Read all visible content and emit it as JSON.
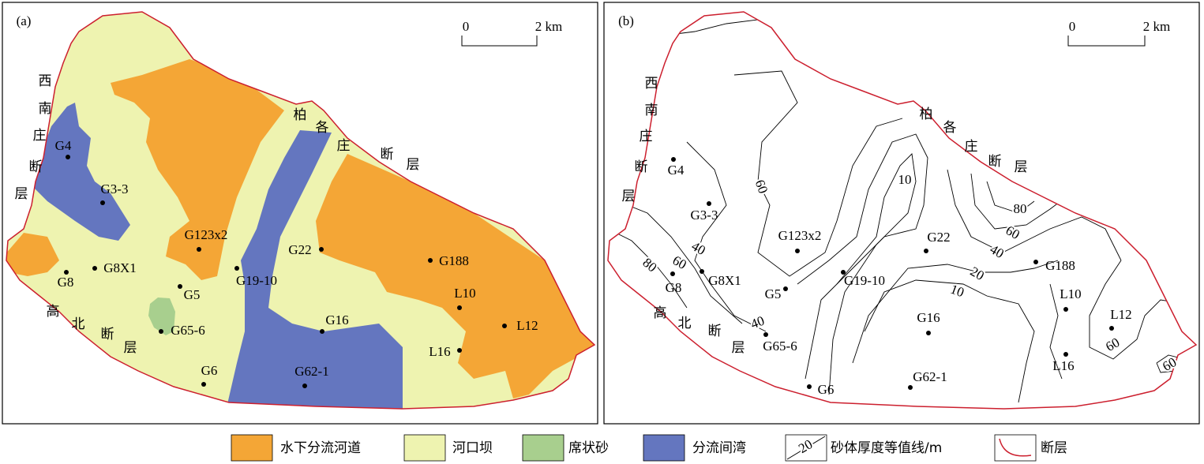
{
  "panels": [
    {
      "label": "(a)",
      "scale": [
        "0",
        "2 km"
      ],
      "fault_labels": [
        [
          "西",
          "南",
          "庄",
          "断",
          "层"
        ],
        [
          "柏",
          "各",
          "庄",
          "断",
          "层"
        ],
        [
          "高",
          "北",
          "断",
          "层"
        ]
      ],
      "wells": [
        "G4",
        "G3-3",
        "G123x2",
        "G22",
        "G188",
        "G8X1",
        "G8",
        "G19-10",
        "G5",
        "L10",
        "G16",
        "G65-6",
        "L12",
        "L16",
        "G6",
        "G62-1"
      ]
    },
    {
      "label": "(b)",
      "scale": [
        "0",
        "2 km"
      ],
      "fault_labels": [
        [
          "西",
          "南",
          "庄",
          "断",
          "层"
        ],
        [
          "柏",
          "各",
          "庄",
          "断",
          "层"
        ],
        [
          "高",
          "北",
          "断",
          "层"
        ]
      ],
      "wells": [
        "G4",
        "G3-3",
        "G123x2",
        "G22",
        "G188",
        "G8X1",
        "G8",
        "G19-10",
        "G5",
        "L10",
        "G16",
        "G65-6",
        "L12",
        "L16",
        "G6",
        "G62-1"
      ],
      "contour_labels": [
        60,
        10,
        80,
        60,
        40,
        20,
        10,
        40,
        60,
        80,
        40,
        60,
        60
      ]
    }
  ],
  "legend": [
    {
      "label": "水下分流河道",
      "color": "#f4a636"
    },
    {
      "label": "河口坝",
      "color": "#eef3b0"
    },
    {
      "label": "席状砂",
      "color": "#a8cf8e"
    },
    {
      "label": "分流间湾",
      "color": "#6476bf"
    },
    {
      "label": "砂体厚度等值线/m",
      "sample": "20"
    },
    {
      "label": "断层",
      "color": "#cc1f2e"
    }
  ]
}
